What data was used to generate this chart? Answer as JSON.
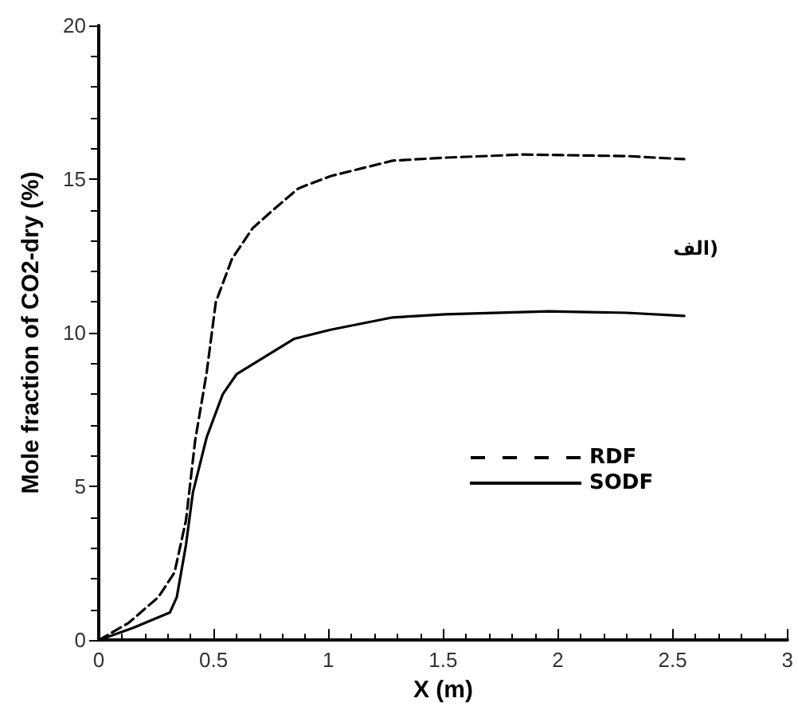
{
  "chart_data": {
    "type": "line",
    "xlabel": "X (m)",
    "ylabel": "Mole fraction of CO2-dry (%)",
    "xlim": [
      0,
      3
    ],
    "xticks": [
      0,
      0.5,
      1,
      1.5,
      2,
      2.5,
      3
    ],
    "ylim": [
      0,
      20
    ],
    "yticks": [
      0,
      5,
      10,
      15,
      20
    ],
    "grid": false,
    "legend": "right",
    "annotations": [
      "الف)"
    ],
    "series": [
      {
        "name": "RDF",
        "color": "#000000",
        "line_style": "dashed",
        "x": [
          0,
          0.13,
          0.26,
          0.33,
          0.38,
          0.42,
          0.47,
          0.51,
          0.58,
          0.67,
          0.76,
          0.87,
          1.01,
          1.28,
          1.51,
          1.85,
          2.3,
          2.55
        ],
        "values": [
          0,
          0.56,
          1.4,
          2.2,
          3.9,
          6.5,
          8.7,
          11,
          12.4,
          13.4,
          14,
          14.7,
          15.1,
          15.6,
          15.7,
          15.8,
          15.75,
          15.65
        ]
      },
      {
        "name": "SODF",
        "color": "#000000",
        "line_style": "solid",
        "x": [
          0,
          0.15,
          0.31,
          0.34,
          0.38,
          0.41,
          0.47,
          0.54,
          0.6,
          0.72,
          0.85,
          1.01,
          1.28,
          1.51,
          1.96,
          2.3,
          2.55
        ],
        "values": [
          0,
          0.4,
          0.9,
          1.4,
          3.1,
          4.8,
          6.6,
          8,
          8.65,
          9.2,
          9.8,
          10.1,
          10.5,
          10.6,
          10.7,
          10.65,
          10.55
        ]
      }
    ]
  }
}
